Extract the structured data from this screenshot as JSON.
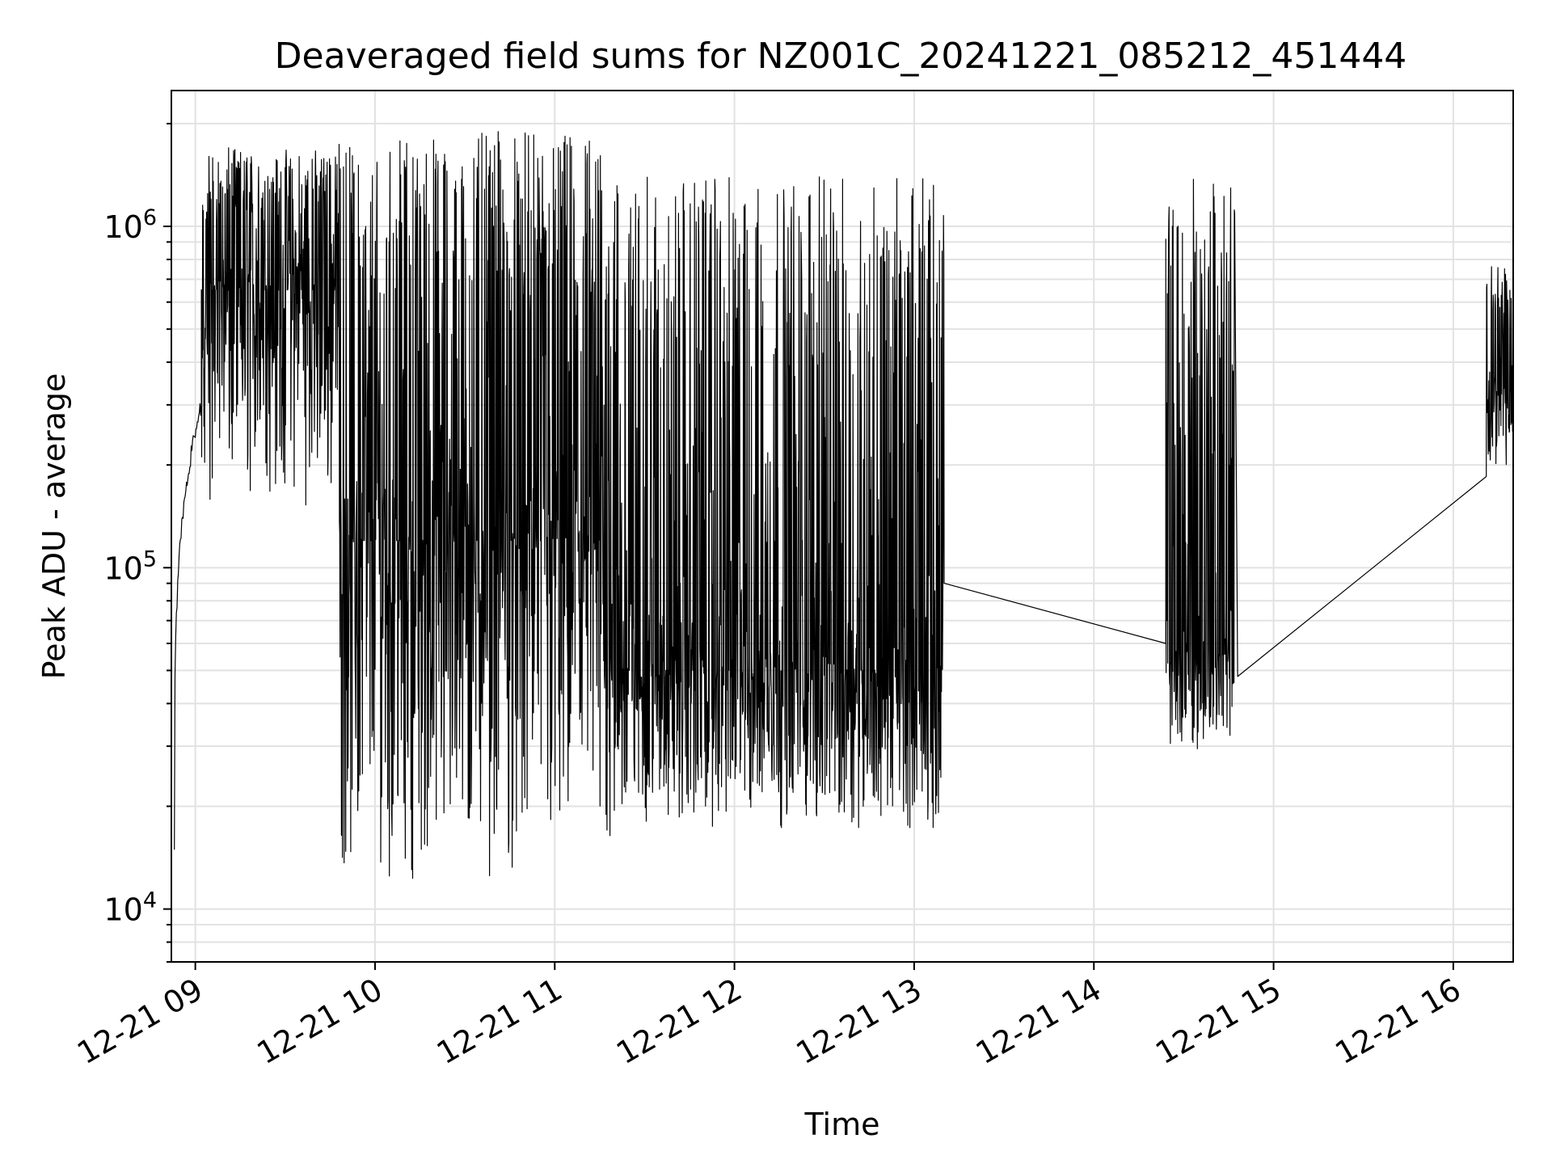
{
  "chart_data": {
    "type": "line",
    "title": "Deaveraged field sums for NZ001C_20241221_085212_451444",
    "xlabel": "Time",
    "ylabel": "Peak ADU - average",
    "yscale": "log",
    "xlim": [
      "12-21 08:52",
      "12-21 16:20"
    ],
    "ylim": [
      7000,
      2500000
    ],
    "grid": true,
    "line_color": "#000000",
    "x_ticks": [
      "12-21 09",
      "12-21 10",
      "12-21 11",
      "12-21 12",
      "12-21 13",
      "12-21 14",
      "12-21 15",
      "12-21 16"
    ],
    "y_ticks": [
      {
        "base": "10",
        "exp": "4",
        "value": 10000
      },
      {
        "base": "10",
        "exp": "5",
        "value": 100000
      },
      {
        "base": "10",
        "exp": "6",
        "value": 1000000
      }
    ],
    "series": [
      {
        "segments": [
          {
            "start": "12-21 08:53",
            "end": "12-21 09:02",
            "shape": "rise",
            "low": 15000,
            "high": 300000
          },
          {
            "start": "12-21 09:02",
            "end": "12-21 09:48",
            "shape": "noisy",
            "low": 150000,
            "high": 1700000,
            "typ": 650000
          },
          {
            "start": "12-21 09:48",
            "end": "12-21 11:20",
            "shape": "noisy",
            "low": 12000,
            "high": 1900000,
            "typ": 120000
          },
          {
            "start": "12-21 11:20",
            "end": "12-21 13:10",
            "shape": "noisy",
            "low": 17000,
            "high": 1400000,
            "typ": 50000
          },
          {
            "start": "12-21 13:10",
            "end": "12-21 14:24",
            "shape": "line",
            "from": 90000,
            "to": 60000
          },
          {
            "start": "12-21 14:24",
            "end": "12-21 14:47",
            "shape": "noisy",
            "low": 29000,
            "high": 1400000,
            "typ": 55000
          },
          {
            "start": "12-21 14:48",
            "end": "12-21 16:11",
            "shape": "line",
            "from": 48000,
            "to": 185000
          },
          {
            "start": "12-21 16:11",
            "end": "12-21 16:20",
            "shape": "noisy",
            "low": 200000,
            "high": 780000,
            "typ": 320000
          }
        ]
      }
    ]
  }
}
